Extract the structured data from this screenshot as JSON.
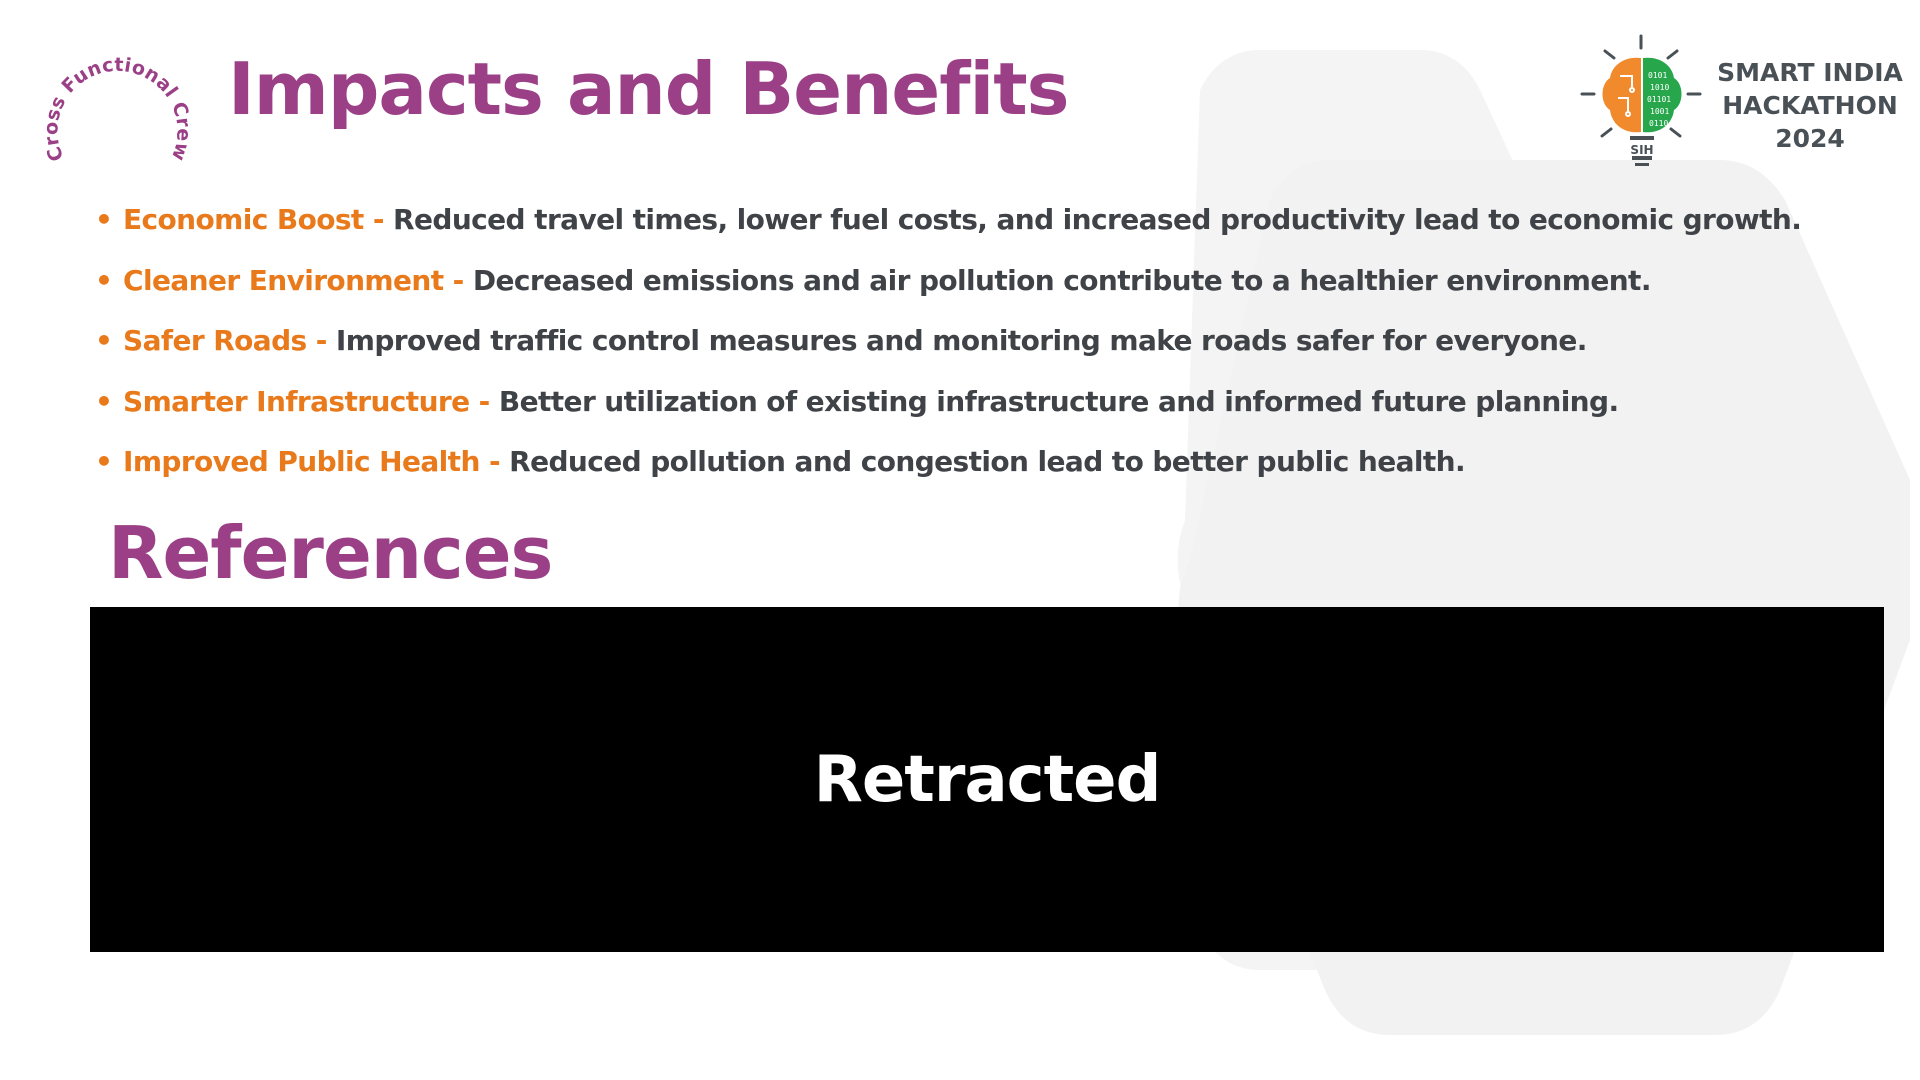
{
  "team_logo": {
    "text": "Cross Functional Crew",
    "color": "#9b3f86"
  },
  "header": {
    "title": "Impacts and Benefits"
  },
  "sih_logo": {
    "line1": "SMART INDIA",
    "line2": "HACKATHON",
    "line3": "2024",
    "badge": "SIH",
    "bits": [
      "0101",
      "1010",
      "01101",
      "1001",
      "0110"
    ],
    "colors": {
      "left_brain": "#f08a2c",
      "right_brain": "#27a64c",
      "text": "#495157"
    }
  },
  "benefits": [
    {
      "name": "Economic Boost",
      "separator": " - ",
      "description": "Reduced travel times, lower fuel costs, and increased productivity lead to economic growth."
    },
    {
      "name": "Cleaner Environment",
      "separator": "  - ",
      "description": "Decreased emissions and air pollution contribute to a healthier environment."
    },
    {
      "name": "Safer Roads",
      "separator": "  - ",
      "description": "Improved traffic control measures and monitoring make roads safer for everyone."
    },
    {
      "name": "Smarter Infrastructure",
      "separator": " - ",
      "description": "Better utilization of existing infrastructure and informed future planning."
    },
    {
      "name": "Improved Public Health",
      "separator": "  - ",
      "description": "Reduced pollution and congestion lead to better public health."
    }
  ],
  "references": {
    "title": "References",
    "panel_text": "Retracted"
  },
  "colors": {
    "title": "#9b3f86",
    "accent": "#e97a1c",
    "body_text": "#3f4347",
    "panel": "#000000"
  }
}
